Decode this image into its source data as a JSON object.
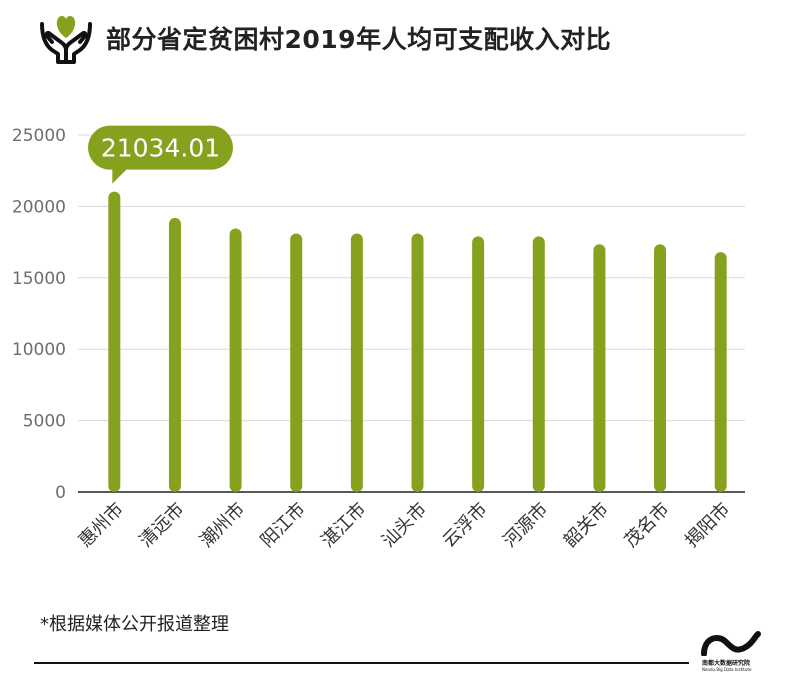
{
  "title": "部分省定贫困村2019年人均可支配收入对比",
  "footnote": "*根据媒体公开报道整理",
  "logo": {
    "name_cn": "南都大数据研究院",
    "name_en": "Nandu Big Data Institute"
  },
  "colors": {
    "bar": "#86a11d",
    "grid": "#d9d9d9",
    "axis_text": "#6e6e6e",
    "label_text": "#333333",
    "callout_bg": "#86a11d",
    "callout_text": "#ffffff",
    "icon": "#86a11d"
  },
  "icons": [
    "heart-hands-icon"
  ],
  "chart_data": {
    "type": "bar",
    "title": "部分省定贫困村2019年人均可支配收入对比",
    "xlabel": "",
    "ylabel": "",
    "ylim": [
      0,
      25000
    ],
    "yticks": [
      0,
      5000,
      10000,
      15000,
      20000,
      25000
    ],
    "grid": true,
    "categories": [
      "惠州市",
      "清远市",
      "潮州市",
      "阳江市",
      "湛江市",
      "汕头市",
      "云浮市",
      "河源市",
      "韶关市",
      "茂名市",
      "揭阳市"
    ],
    "values": [
      21034.01,
      19200,
      18450,
      18100,
      18100,
      18100,
      17900,
      17900,
      17350,
      17350,
      16800
    ],
    "annotation": {
      "category": "惠州市",
      "text": "21034.01"
    }
  }
}
